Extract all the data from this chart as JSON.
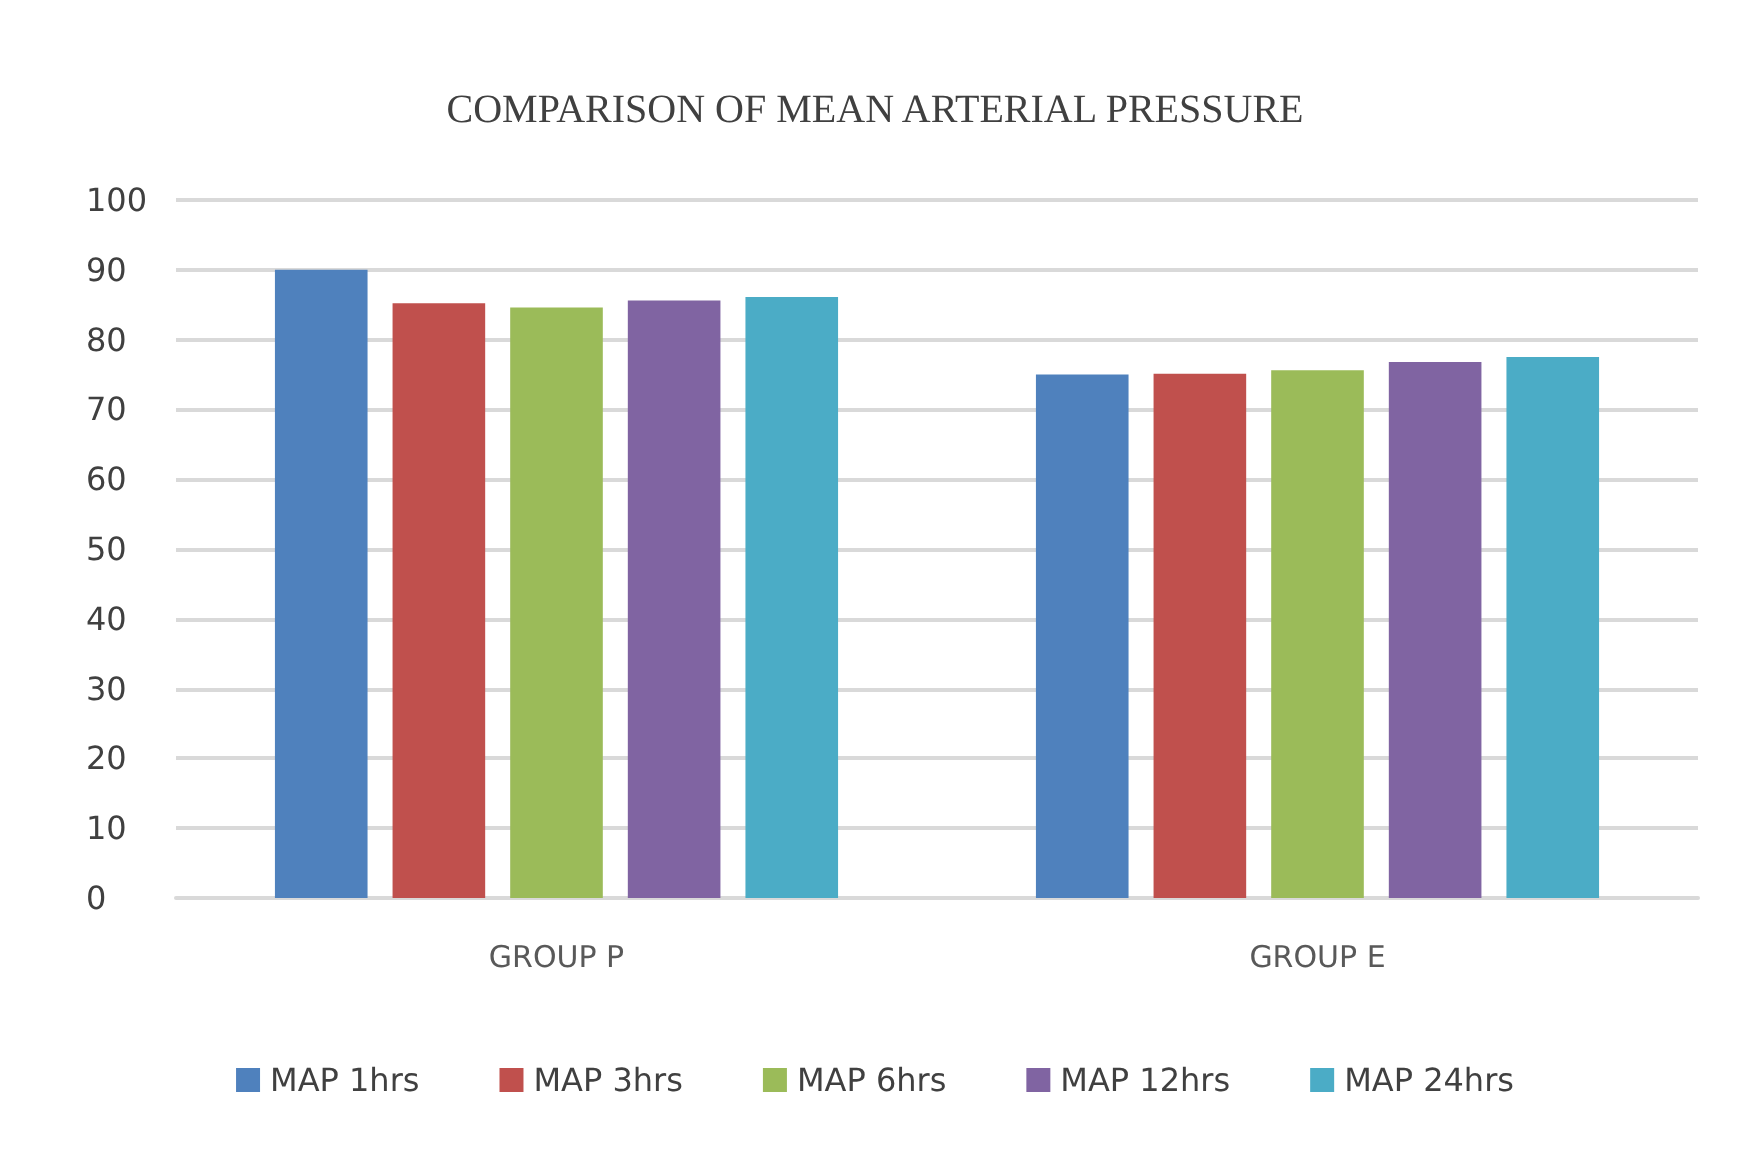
{
  "chart_data": {
    "type": "bar",
    "title": "COMPARISON OF MEAN ARTERIAL PRESSURE",
    "categories": [
      "GROUP P",
      "GROUP E"
    ],
    "series": [
      {
        "name": "MAP 1hrs",
        "color": "#4f81bd",
        "values": [
          90,
          75
        ]
      },
      {
        "name": "MAP 3hrs",
        "color": "#c0504d",
        "values": [
          85.2,
          75.1
        ]
      },
      {
        "name": "MAP 6hrs",
        "color": "#9bbb59",
        "values": [
          84.6,
          75.6
        ]
      },
      {
        "name": "MAP 12hrs",
        "color": "#8064a2",
        "values": [
          85.6,
          76.8
        ]
      },
      {
        "name": "MAP 24hrs",
        "color": "#4bacc6",
        "values": [
          86.1,
          77.5
        ]
      }
    ],
    "ylim": [
      0,
      100
    ],
    "yticks": [
      0,
      10,
      20,
      30,
      40,
      50,
      60,
      70,
      80,
      90,
      100
    ],
    "grid": "y",
    "legend": "bottom"
  }
}
